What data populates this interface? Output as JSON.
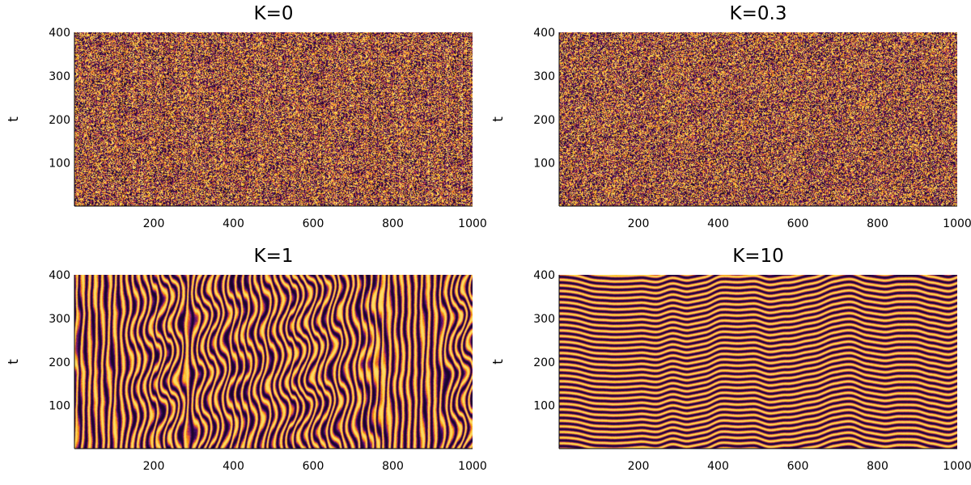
{
  "chart_data": [
    {
      "type": "heatmap",
      "title": "K=0",
      "xlabel": "",
      "ylabel": "t",
      "xlim": [
        1,
        1000
      ],
      "ylim": [
        1,
        400
      ],
      "xticks": [
        200,
        400,
        600,
        800,
        1000
      ],
      "yticks": [
        100,
        200,
        300,
        400
      ],
      "colormap": [
        "#000004",
        "#420a68",
        "#932667",
        "#dd513a",
        "#fca50a",
        "#fcffa4"
      ],
      "pattern": "uncorrelated noise",
      "coupling": 0
    },
    {
      "type": "heatmap",
      "title": "K=0.3",
      "xlabel": "",
      "ylabel": "t",
      "xlim": [
        1,
        1000
      ],
      "ylim": [
        1,
        400
      ],
      "xticks": [
        200,
        400,
        600,
        800,
        1000
      ],
      "yticks": [
        100,
        200,
        300,
        400
      ],
      "colormap": [
        "#000004",
        "#420a68",
        "#932667",
        "#dd513a",
        "#fca50a",
        "#fcffa4"
      ],
      "pattern": "weakly correlated noise",
      "coupling": 0.3
    },
    {
      "type": "heatmap",
      "title": "K=1",
      "xlabel": "",
      "ylabel": "t",
      "xlim": [
        1,
        1000
      ],
      "ylim": [
        1,
        400
      ],
      "xticks": [
        200,
        400,
        600,
        800,
        1000
      ],
      "yticks": [
        100,
        200,
        300,
        400
      ],
      "colormap": [
        "#000004",
        "#420a68",
        "#932667",
        "#dd513a",
        "#fca50a",
        "#fcffa4"
      ],
      "pattern": "near-vertical wavy stripes",
      "coupling": 1
    },
    {
      "type": "heatmap",
      "title": "K=10",
      "xlabel": "",
      "ylabel": "t",
      "xlim": [
        1,
        1000
      ],
      "ylim": [
        1,
        400
      ],
      "xticks": [
        200,
        400,
        600,
        800,
        1000
      ],
      "yticks": [
        100,
        200,
        300,
        400
      ],
      "colormap": [
        "#000004",
        "#420a68",
        "#932667",
        "#dd513a",
        "#fca50a",
        "#fcffa4"
      ],
      "pattern": "near-horizontal wavy stripes",
      "coupling": 10
    }
  ]
}
